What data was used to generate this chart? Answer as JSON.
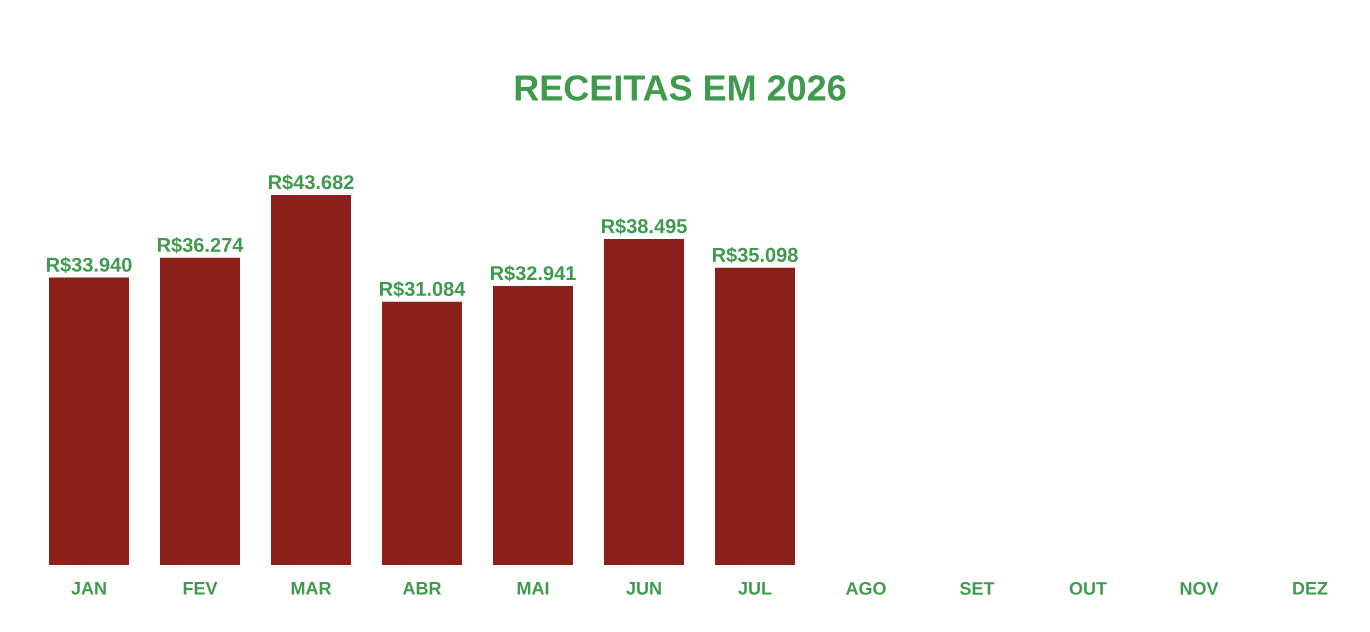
{
  "chart_data": {
    "type": "bar",
    "title": "RECEITAS EM 2026",
    "categories": [
      "JAN",
      "FEV",
      "MAR",
      "ABR",
      "MAI",
      "JUN",
      "JUL",
      "AGO",
      "SET",
      "OUT",
      "NOV",
      "DEZ"
    ],
    "values": [
      33940,
      36274,
      43682,
      31084,
      32941,
      38495,
      35098,
      null,
      null,
      null,
      null,
      null
    ],
    "value_labels": [
      "R$33.940",
      "R$36.274",
      "R$43.682",
      "R$31.084",
      "R$32.941",
      "R$38.495",
      "R$35.098",
      null,
      null,
      null,
      null,
      null
    ],
    "color": "#8b1f1a"
  }
}
